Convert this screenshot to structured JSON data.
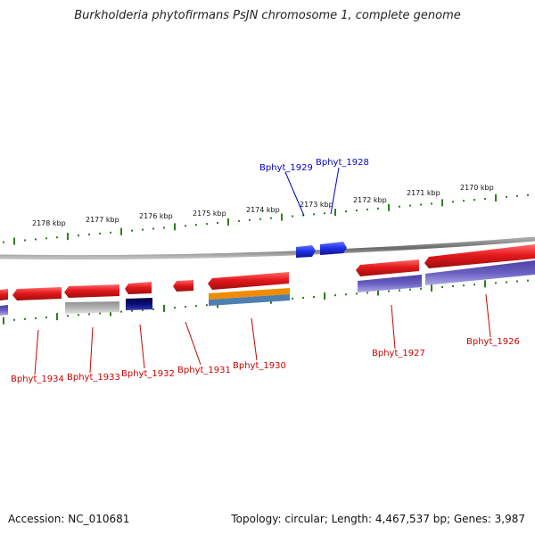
{
  "title": "Burkholderia phytofirmans PsJN chromosome 1, complete genome",
  "footer": {
    "accession": "Accession: NC_010681",
    "stats": "Topology: circular; Length: 4,467,537 bp; Genes: 3,987"
  },
  "colors": {
    "ruler_tick": "#2e7d1f",
    "backbone": "#7a7a7a",
    "gene_red": "#e4191c",
    "gene_blue": "#1f2fe6",
    "gene_purple": "#6a5fc2",
    "gene_gray": "#b3b3b3",
    "gene_navy": "#0b0b78",
    "gene_orange": "#f08c00",
    "gene_steel": "#4d7fb0",
    "label_red": "#cc0000",
    "label_blue": "#0000cc"
  },
  "scale_labels": [
    "2178 kbp",
    "2177 kbp",
    "2176 kbp",
    "2175 kbp",
    "2174 kbp",
    "2173 kbp",
    "2172 kbp",
    "2171 kbp",
    "2170 kbp"
  ],
  "gene_labels": [
    {
      "text": "Bphyt_1929",
      "strand": "forward"
    },
    {
      "text": "Bphyt_1928",
      "strand": "forward"
    },
    {
      "text": "Bphyt_1934",
      "strand": "reverse"
    },
    {
      "text": "Bphyt_1933",
      "strand": "reverse"
    },
    {
      "text": "Bphyt_1932",
      "strand": "reverse"
    },
    {
      "text": "Bphyt_1931",
      "strand": "reverse"
    },
    {
      "text": "Bphyt_1930",
      "strand": "reverse"
    },
    {
      "text": "Bphyt_1927",
      "strand": "reverse"
    },
    {
      "text": "Bphyt_1926",
      "strand": "reverse"
    }
  ]
}
